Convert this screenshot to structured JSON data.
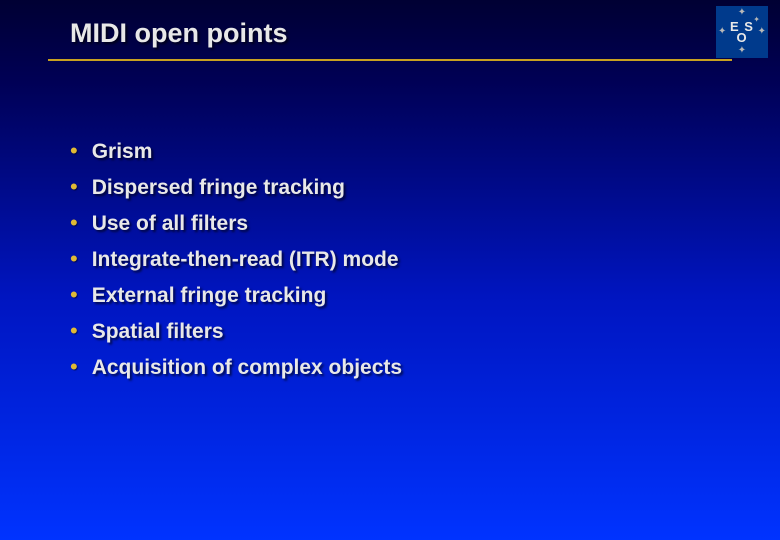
{
  "title": "MIDI open points",
  "logo": {
    "line1": "E S",
    "line2": "O"
  },
  "bullets": [
    "Grism",
    "Dispersed fringe tracking",
    "Use of all filters",
    "Integrate-then-read (ITR) mode",
    "External fringe tracking",
    "Spatial filters",
    "Acquisition of complex objects"
  ],
  "colors": {
    "bullet_color": "#e0b935",
    "rule_color": "#c8a020",
    "text_color": "#e8e8e8",
    "bg_top": "#000033",
    "bg_bottom": "#0033ff",
    "logo_bg": "#003a8c"
  },
  "typography": {
    "title_fontsize": 27,
    "bullet_fontsize": 21,
    "font_family": "Arial",
    "font_weight": "bold"
  }
}
